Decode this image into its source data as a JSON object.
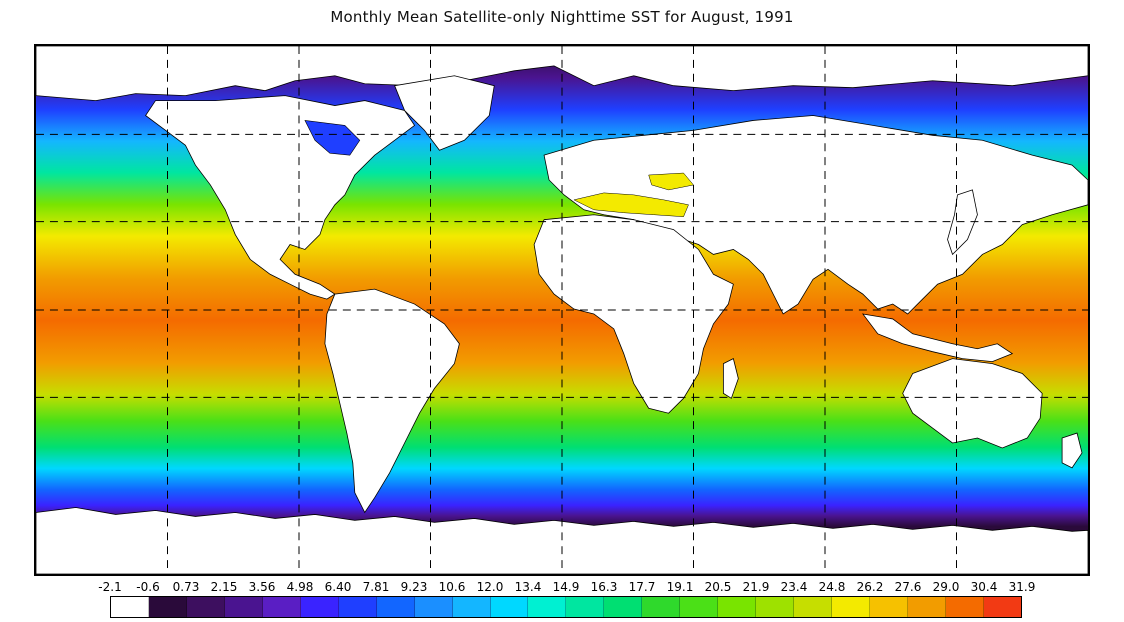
{
  "title": "Monthly Mean Satellite-only Nighttime SST for August, 1991",
  "legend": {
    "labels": [
      "-2.1",
      "-0.6",
      "0.73",
      "2.15",
      "3.56",
      "4.98",
      "6.40",
      "7.81",
      "9.23",
      "10.6",
      "12.0",
      "13.4",
      "14.9",
      "16.3",
      "17.7",
      "19.1",
      "20.5",
      "21.9",
      "23.4",
      "24.8",
      "26.2",
      "27.6",
      "29.0",
      "30.4",
      "31.9"
    ],
    "colors": [
      "#ffffff",
      "#2a0a3a",
      "#3d0f5f",
      "#4a1490",
      "#5a1ec4",
      "#3a23ff",
      "#1f3fff",
      "#1266ff",
      "#1b8fff",
      "#14b6ff",
      "#00d8ff",
      "#00f0d2",
      "#00e6a0",
      "#00df72",
      "#2fd92c",
      "#4be017",
      "#79e400",
      "#9ee100",
      "#c6de00",
      "#f3ea00",
      "#f6c100",
      "#f29c00",
      "#f46b00",
      "#f23a14"
    ]
  },
  "map": {
    "projection": "equirectangular",
    "grid": "dashed",
    "land_color": "#ffffff",
    "gridlines": {
      "lon": [
        -150,
        -120,
        -90,
        -60,
        -30,
        0,
        30,
        60,
        90,
        120,
        150
      ],
      "lat": [
        -60,
        -30,
        0,
        30,
        60
      ]
    }
  }
}
